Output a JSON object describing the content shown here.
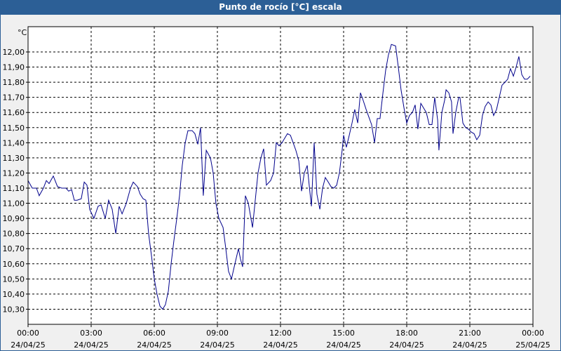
{
  "chart_data": {
    "type": "line",
    "title": "Punto de rocío [°C] escala",
    "y_unit": "°C",
    "color": "#00008b",
    "grid": true,
    "xlim": [
      0,
      24
    ],
    "ylim": [
      10.2,
      12.167
    ],
    "xticks": [
      {
        "value": 0,
        "label": "00:00",
        "date": "24/04/25"
      },
      {
        "value": 3,
        "label": "03:00",
        "date": "24/04/25"
      },
      {
        "value": 6,
        "label": "06:00",
        "date": "24/04/25"
      },
      {
        "value": 9,
        "label": "09:00",
        "date": "24/04/25"
      },
      {
        "value": 12,
        "label": "12:00",
        "date": "24/04/25"
      },
      {
        "value": 15,
        "label": "15:00",
        "date": "24/04/25"
      },
      {
        "value": 18,
        "label": "18:00",
        "date": "24/04/25"
      },
      {
        "value": 21,
        "label": "21:00",
        "date": "24/04/25"
      },
      {
        "value": 24,
        "label": "00:00",
        "date": "25/04/25"
      }
    ],
    "yticks": [
      {
        "value": 10.3,
        "label": "10,30"
      },
      {
        "value": 10.4,
        "label": "10,40"
      },
      {
        "value": 10.5,
        "label": "10,50"
      },
      {
        "value": 10.6,
        "label": "10,60"
      },
      {
        "value": 10.7,
        "label": "10,70"
      },
      {
        "value": 10.8,
        "label": "10,80"
      },
      {
        "value": 10.9,
        "label": "10,90"
      },
      {
        "value": 11.0,
        "label": "11,00"
      },
      {
        "value": 11.1,
        "label": "11,10"
      },
      {
        "value": 11.2,
        "label": "11,20"
      },
      {
        "value": 11.3,
        "label": "11,30"
      },
      {
        "value": 11.4,
        "label": "11,40"
      },
      {
        "value": 11.5,
        "label": "11,50"
      },
      {
        "value": 11.6,
        "label": "11,60"
      },
      {
        "value": 11.7,
        "label": "11,70"
      },
      {
        "value": 11.8,
        "label": "11,80"
      },
      {
        "value": 11.9,
        "label": "11,90"
      },
      {
        "value": 12.0,
        "label": "12,00"
      }
    ],
    "x": [
      0,
      0.2,
      0.4,
      0.53,
      0.73,
      0.87,
      1.0,
      1.2,
      1.4,
      1.6,
      1.8,
      1.93,
      2.07,
      2.2,
      2.33,
      2.53,
      2.67,
      2.8,
      2.93,
      3.13,
      3.33,
      3.47,
      3.67,
      3.83,
      4.0,
      4.17,
      4.33,
      4.47,
      4.67,
      4.87,
      5.0,
      5.2,
      5.33,
      5.47,
      5.6,
      5.73,
      5.87,
      6.0,
      6.13,
      6.27,
      6.4,
      6.53,
      6.67,
      6.8,
      6.93,
      7.07,
      7.2,
      7.33,
      7.47,
      7.6,
      7.8,
      7.93,
      8.07,
      8.2,
      8.33,
      8.47,
      8.67,
      8.8,
      8.93,
      9.07,
      9.27,
      9.4,
      9.53,
      9.67,
      9.8,
      10.0,
      10.1,
      10.2,
      10.33,
      10.47,
      10.67,
      10.8,
      10.93,
      11.07,
      11.2,
      11.33,
      11.53,
      11.67,
      11.8,
      11.93,
      12.07,
      12.2,
      12.33,
      12.47,
      12.6,
      12.73,
      12.87,
      13.0,
      13.13,
      13.27,
      13.4,
      13.47,
      13.6,
      13.73,
      13.87,
      14.0,
      14.13,
      14.27,
      14.4,
      14.53,
      14.67,
      14.8,
      14.93,
      15.0,
      15.13,
      15.27,
      15.4,
      15.53,
      15.67,
      15.8,
      15.93,
      16.07,
      16.2,
      16.33,
      16.47,
      16.6,
      16.73,
      16.87,
      17.0,
      17.13,
      17.27,
      17.47,
      17.6,
      17.73,
      17.87,
      18.0,
      18.13,
      18.27,
      18.4,
      18.53,
      18.67,
      18.8,
      18.93,
      19.07,
      19.2,
      19.33,
      19.47,
      19.53,
      19.67,
      19.8,
      19.87,
      20.0,
      20.13,
      20.2,
      20.33,
      20.47,
      20.53,
      20.67,
      20.8,
      20.93,
      21.07,
      21.2,
      21.33,
      21.47,
      21.6,
      21.73,
      21.87,
      22.0,
      22.13,
      22.27,
      22.4,
      22.53,
      22.67,
      22.8,
      22.93,
      23.07,
      23.2,
      23.33,
      23.47,
      23.6,
      23.73,
      23.87
    ],
    "values": [
      11.15,
      11.1,
      11.1,
      11.05,
      11.1,
      11.15,
      11.13,
      11.18,
      11.11,
      11.1,
      11.1,
      11.08,
      11.09,
      11.02,
      11.02,
      11.03,
      11.14,
      11.12,
      10.96,
      10.9,
      10.98,
      10.99,
      10.9,
      11.02,
      10.96,
      10.8,
      10.98,
      10.93,
      11.0,
      11.1,
      11.14,
      11.11,
      11.06,
      11.03,
      11.02,
      10.8,
      10.65,
      10.5,
      10.4,
      10.32,
      10.3,
      10.33,
      10.42,
      10.6,
      10.75,
      10.9,
      11.05,
      11.25,
      11.4,
      11.48,
      11.48,
      11.46,
      11.39,
      11.5,
      11.05,
      11.35,
      11.3,
      11.2,
      11.0,
      10.9,
      10.84,
      10.7,
      10.55,
      10.5,
      10.58,
      10.7,
      10.63,
      10.58,
      11.05,
      11.0,
      10.84,
      11.02,
      11.2,
      11.3,
      11.36,
      11.12,
      11.15,
      11.2,
      11.4,
      11.38,
      11.4,
      11.43,
      11.46,
      11.45,
      11.4,
      11.35,
      11.28,
      11.08,
      11.2,
      11.25,
      11.07,
      10.98,
      11.4,
      11.06,
      10.96,
      11.1,
      11.17,
      11.14,
      11.11,
      11.1,
      11.12,
      11.2,
      11.35,
      11.45,
      11.37,
      11.45,
      11.53,
      11.62,
      11.53,
      11.73,
      11.68,
      11.62,
      11.57,
      11.52,
      11.4,
      11.56,
      11.56,
      11.73,
      11.88,
      11.98,
      12.05,
      12.04,
      11.9,
      11.75,
      11.63,
      11.53,
      11.58,
      11.6,
      11.65,
      11.49,
      11.66,
      11.63,
      11.6,
      11.52,
      11.52,
      11.7,
      11.55,
      11.35,
      11.6,
      11.68,
      11.75,
      11.73,
      11.67,
      11.46,
      11.6,
      11.7,
      11.7,
      11.53,
      11.5,
      11.49,
      11.47,
      11.46,
      11.42,
      11.45,
      11.58,
      11.64,
      11.67,
      11.65,
      11.58,
      11.62,
      11.7,
      11.78,
      11.8,
      11.82,
      11.89,
      11.84,
      11.9,
      11.97,
      11.85,
      11.82,
      11.82,
      11.84
    ]
  }
}
